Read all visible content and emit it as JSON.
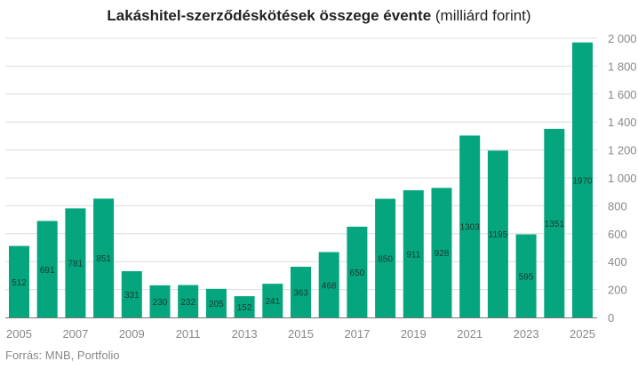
{
  "chart_data": {
    "type": "bar",
    "title_bold": "Lakáshitel-szerződéskötések összege évente",
    "title_rest": " (milliárd forint)",
    "xlabel": "",
    "ylabel": "",
    "ylim": [
      0,
      2000
    ],
    "yticks": [
      0,
      200,
      400,
      600,
      800,
      1000,
      1200,
      1400,
      1600,
      1800,
      2000
    ],
    "ytick_labels": [
      "0",
      "200",
      "400",
      "600",
      "800",
      "1 000",
      "1 200",
      "1 400",
      "1 600",
      "1 800",
      "2 000"
    ],
    "axis_position": "right",
    "grid": true,
    "categories": [
      "2005",
      "2006",
      "2007",
      "2008",
      "2009",
      "2010",
      "2011",
      "2012",
      "2013",
      "2014",
      "2015",
      "2016",
      "2017",
      "2018",
      "2019",
      "2020",
      "2021",
      "2022",
      "2023",
      "2024",
      "2025"
    ],
    "xtick_labels": [
      "2005",
      "2007",
      "2009",
      "2011",
      "2013",
      "2015",
      "2017",
      "2019",
      "2021",
      "2023",
      "2025"
    ],
    "values": [
      512,
      691,
      781,
      851,
      331,
      230,
      232,
      205,
      152,
      241,
      363,
      468,
      650,
      850,
      911,
      928,
      1303,
      1195,
      595,
      1351,
      1970
    ],
    "color": "#05a57e",
    "source": "Forrás: MNB, Portfolio"
  }
}
